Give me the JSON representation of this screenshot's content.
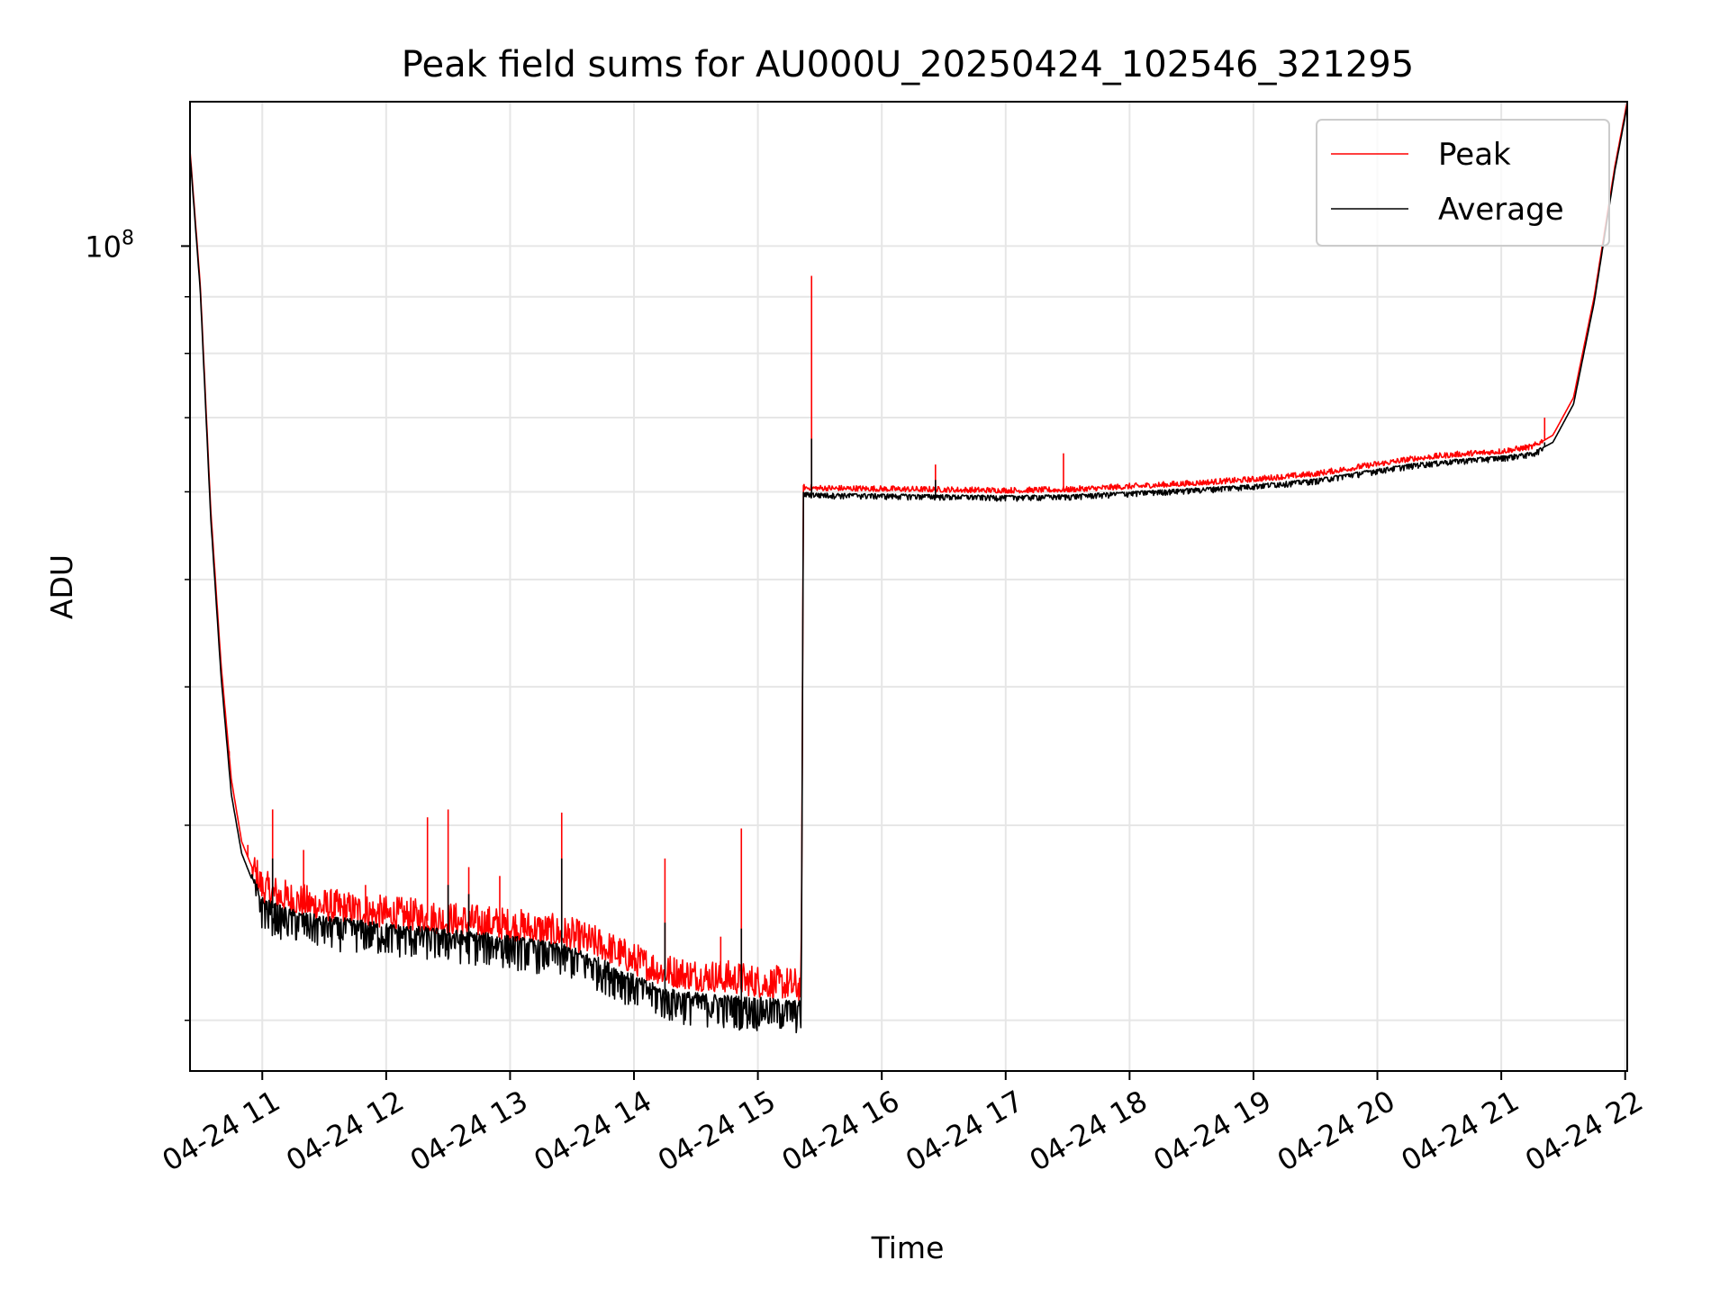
{
  "chart_data": {
    "type": "line",
    "title": "Peak field sums for AU000U_20250424_102546_321295",
    "xlabel": "Time",
    "ylabel": "ADU",
    "yscale": "log",
    "xlim": [
      "2025-04-24 10:25",
      "2025-04-24 22:01"
    ],
    "ylim": [
      18000000,
      135000000
    ],
    "grid": true,
    "legend_position": "top-right",
    "x_ticks": [
      "2025-04-24 11:00",
      "2025-04-24 12:00",
      "2025-04-24 13:00",
      "2025-04-24 14:00",
      "2025-04-24 15:00",
      "2025-04-24 16:00",
      "2025-04-24 17:00",
      "2025-04-24 18:00",
      "2025-04-24 19:00",
      "2025-04-24 20:00",
      "2025-04-24 21:00",
      "2025-04-24 22:00"
    ],
    "x_tick_labels": [
      "04-24 11",
      "04-24 12",
      "04-24 13",
      "04-24 14",
      "04-24 15",
      "04-24 16",
      "04-24 17",
      "04-24 18",
      "04-24 19",
      "04-24 20",
      "04-24 21",
      "04-24 22"
    ],
    "y_ticks": [
      100000000
    ],
    "y_tick_label_base": "10",
    "y_tick_label_exp": "8",
    "series": [
      {
        "name": "Peak",
        "color": "#ff0000",
        "points": [
          [
            "2025-04-24 10:25",
            122000000
          ],
          [
            "2025-04-24 10:30",
            92000000
          ],
          [
            "2025-04-24 10:35",
            58000000
          ],
          [
            "2025-04-24 10:40",
            42000000
          ],
          [
            "2025-04-24 10:45",
            33000000
          ],
          [
            "2025-04-24 10:50",
            29000000
          ],
          [
            "2025-04-24 10:55",
            27500000
          ],
          [
            "2025-04-24 11:00",
            26200000
          ],
          [
            "2025-04-24 11:10",
            25700000
          ],
          [
            "2025-04-24 11:20",
            25400000
          ],
          [
            "2025-04-24 11:30",
            25200000
          ],
          [
            "2025-04-24 11:45",
            25000000
          ],
          [
            "2025-04-24 12:00",
            24800000
          ],
          [
            "2025-04-24 12:15",
            24650000
          ],
          [
            "2025-04-24 12:30",
            24500000
          ],
          [
            "2025-04-24 12:45",
            24350000
          ],
          [
            "2025-04-24 13:00",
            24200000
          ],
          [
            "2025-04-24 13:15",
            24000000
          ],
          [
            "2025-04-24 13:30",
            23700000
          ],
          [
            "2025-04-24 13:45",
            23200000
          ],
          [
            "2025-04-24 14:00",
            22500000
          ],
          [
            "2025-04-24 14:15",
            22000000
          ],
          [
            "2025-04-24 14:30",
            21800000
          ],
          [
            "2025-04-24 14:45",
            21700000
          ],
          [
            "2025-04-24 15:00",
            21500000
          ],
          [
            "2025-04-24 15:15",
            21400000
          ],
          [
            "2025-04-24 15:21",
            21300000
          ],
          [
            "2025-04-24 15:22",
            60500000
          ],
          [
            "2025-04-24 15:30",
            60400000
          ],
          [
            "2025-04-24 16:00",
            60300000
          ],
          [
            "2025-04-24 16:30",
            60200000
          ],
          [
            "2025-04-24 17:00",
            60100000
          ],
          [
            "2025-04-24 17:30",
            60200000
          ],
          [
            "2025-04-24 18:00",
            60600000
          ],
          [
            "2025-04-24 18:30",
            61000000
          ],
          [
            "2025-04-24 19:00",
            61500000
          ],
          [
            "2025-04-24 19:30",
            62200000
          ],
          [
            "2025-04-24 20:00",
            63500000
          ],
          [
            "2025-04-24 20:20",
            64300000
          ],
          [
            "2025-04-24 20:40",
            64800000
          ],
          [
            "2025-04-24 21:00",
            65200000
          ],
          [
            "2025-04-24 21:15",
            65800000
          ],
          [
            "2025-04-24 21:25",
            67500000
          ],
          [
            "2025-04-24 21:35",
            73000000
          ],
          [
            "2025-04-24 21:45",
            90000000
          ],
          [
            "2025-04-24 21:55",
            118000000
          ],
          [
            "2025-04-24 22:01",
            135000000
          ]
        ],
        "spikes": [
          [
            "2025-04-24 10:44",
            35000000
          ],
          [
            "2025-04-24 10:53",
            28800000
          ],
          [
            "2025-04-24 11:05",
            31000000
          ],
          [
            "2025-04-24 11:20",
            28500000
          ],
          [
            "2025-04-24 11:50",
            26500000
          ],
          [
            "2025-04-24 12:20",
            30500000
          ],
          [
            "2025-04-24 12:30",
            31000000
          ],
          [
            "2025-04-24 12:40",
            27500000
          ],
          [
            "2025-04-24 12:55",
            27000000
          ],
          [
            "2025-04-24 13:25",
            30800000
          ],
          [
            "2025-04-24 14:15",
            28000000
          ],
          [
            "2025-04-24 14:42",
            23800000
          ],
          [
            "2025-04-24 14:52",
            29800000
          ],
          [
            "2025-04-24 15:26",
            94000000
          ],
          [
            "2025-04-24 16:26",
            63500000
          ],
          [
            "2025-04-24 17:28",
            65000000
          ],
          [
            "2025-04-24 21:21",
            70000000
          ]
        ]
      },
      {
        "name": "Average",
        "color": "#000000",
        "points": [
          [
            "2025-04-24 10:25",
            121000000
          ],
          [
            "2025-04-24 10:30",
            91000000
          ],
          [
            "2025-04-24 10:35",
            57000000
          ],
          [
            "2025-04-24 10:40",
            41000000
          ],
          [
            "2025-04-24 10:45",
            32000000
          ],
          [
            "2025-04-24 10:50",
            28300000
          ],
          [
            "2025-04-24 10:55",
            26800000
          ],
          [
            "2025-04-24 11:00",
            25500000
          ],
          [
            "2025-04-24 11:10",
            25000000
          ],
          [
            "2025-04-24 11:20",
            24700000
          ],
          [
            "2025-04-24 11:30",
            24500000
          ],
          [
            "2025-04-24 11:45",
            24350000
          ],
          [
            "2025-04-24 12:00",
            24150000
          ],
          [
            "2025-04-24 12:15",
            24000000
          ],
          [
            "2025-04-24 12:30",
            23850000
          ],
          [
            "2025-04-24 12:45",
            23700000
          ],
          [
            "2025-04-24 13:00",
            23550000
          ],
          [
            "2025-04-24 13:15",
            23300000
          ],
          [
            "2025-04-24 13:30",
            23000000
          ],
          [
            "2025-04-24 13:45",
            22400000
          ],
          [
            "2025-04-24 14:00",
            21700000
          ],
          [
            "2025-04-24 14:15",
            21100000
          ],
          [
            "2025-04-24 14:30",
            20900000
          ],
          [
            "2025-04-24 14:45",
            20800000
          ],
          [
            "2025-04-24 15:00",
            20700000
          ],
          [
            "2025-04-24 15:15",
            20600000
          ],
          [
            "2025-04-24 15:21",
            20550000
          ],
          [
            "2025-04-24 15:22",
            59800000
          ],
          [
            "2025-04-24 15:30",
            59700000
          ],
          [
            "2025-04-24 16:00",
            59600000
          ],
          [
            "2025-04-24 16:30",
            59500000
          ],
          [
            "2025-04-24 17:00",
            59400000
          ],
          [
            "2025-04-24 17:30",
            59500000
          ],
          [
            "2025-04-24 18:00",
            59900000
          ],
          [
            "2025-04-24 18:30",
            60300000
          ],
          [
            "2025-04-24 19:00",
            60800000
          ],
          [
            "2025-04-24 19:30",
            61500000
          ],
          [
            "2025-04-24 20:00",
            62800000
          ],
          [
            "2025-04-24 20:20",
            63600000
          ],
          [
            "2025-04-24 20:40",
            64100000
          ],
          [
            "2025-04-24 21:00",
            64500000
          ],
          [
            "2025-04-24 21:15",
            65000000
          ],
          [
            "2025-04-24 21:25",
            66500000
          ],
          [
            "2025-04-24 21:35",
            72000000
          ],
          [
            "2025-04-24 21:45",
            89000000
          ],
          [
            "2025-04-24 21:55",
            117000000
          ],
          [
            "2025-04-24 22:01",
            134000000
          ]
        ],
        "spikes": [
          [
            "2025-04-24 11:05",
            28000000
          ],
          [
            "2025-04-24 12:30",
            26500000
          ],
          [
            "2025-04-24 12:40",
            26000000
          ],
          [
            "2025-04-24 13:25",
            28000000
          ],
          [
            "2025-04-24 14:15",
            24500000
          ],
          [
            "2025-04-24 14:52",
            24200000
          ],
          [
            "2025-04-24 15:26",
            67000000
          ],
          [
            "2025-04-24 16:26",
            61500000
          ],
          [
            "2025-04-24 21:21",
            66500000
          ]
        ]
      }
    ]
  }
}
